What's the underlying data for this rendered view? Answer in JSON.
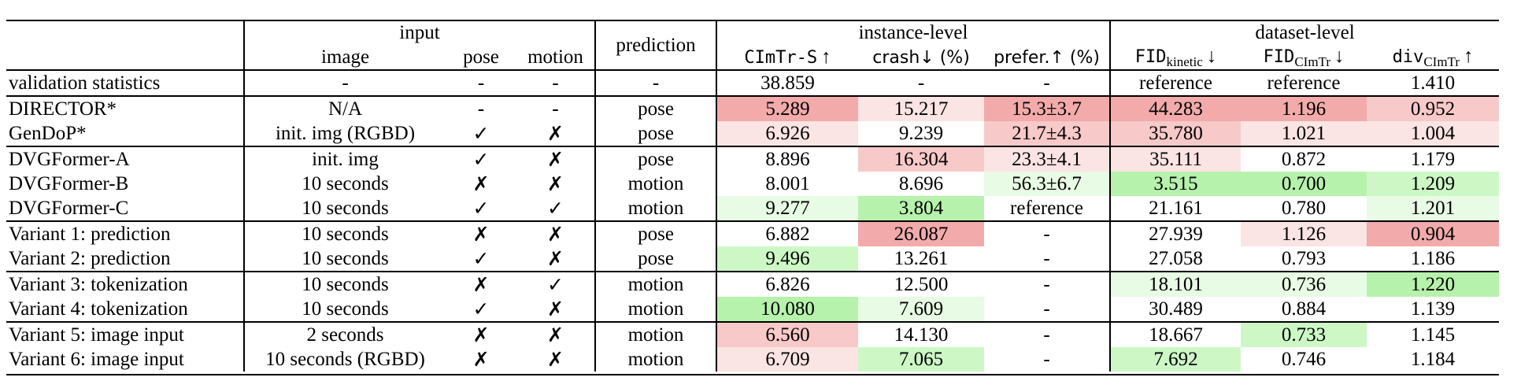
{
  "header": {
    "group_input": "input",
    "group_instance": "instance-level",
    "group_dataset": "dataset-level",
    "col_image": "image",
    "col_pose": "pose",
    "col_motion": "motion",
    "col_prediction": "prediction",
    "col_cimtr_s": "CImTr-S",
    "col_cimtr_s_arrow": "↑",
    "col_crash": "crash↓ (%)",
    "col_prefer": "prefer.↑ (%)",
    "col_fid_kinetic_base": "FID",
    "col_fid_kinetic_sub": "kinetic",
    "col_fid_kinetic_arrow": "↓",
    "col_fid_cimtr_base": "FID",
    "col_fid_cimtr_sub": "CImTr",
    "col_fid_cimtr_arrow": "↓",
    "col_div_base": "div",
    "col_div_sub": "CImTr",
    "col_div_arrow": "↑"
  },
  "validation": {
    "label": "validation statistics",
    "image": "-",
    "pose": "-",
    "motion": "-",
    "prediction": "-",
    "cimtr_s": "38.859",
    "crash": "-",
    "prefer": "-",
    "fid_kinetic": "reference",
    "fid_cimtr": "reference",
    "div": "1.410"
  },
  "rows": [
    {
      "label": "DIRECTOR*",
      "image": "N/A",
      "pose": "-",
      "motion": "-",
      "prediction": "pose",
      "cimtr_s": "5.289",
      "crash": "15.217",
      "prefer": "15.3±3.7",
      "fid_kinetic": "44.283",
      "fid_cimtr": "1.196",
      "div": "0.952"
    },
    {
      "label": "GenDoP*",
      "image": "init. img (RGBD)",
      "pose": "✓",
      "motion": "✗",
      "prediction": "pose",
      "cimtr_s": "6.926",
      "crash": "9.239",
      "prefer": "21.7±4.3",
      "fid_kinetic": "35.780",
      "fid_cimtr": "1.021",
      "div": "1.004"
    },
    {
      "label": "DVGFormer-A",
      "image": "init. img",
      "pose": "✓",
      "motion": "✗",
      "prediction": "pose",
      "cimtr_s": "8.896",
      "crash": "16.304",
      "prefer": "23.3±4.1",
      "fid_kinetic": "35.111",
      "fid_cimtr": "0.872",
      "div": "1.179"
    },
    {
      "label": "DVGFormer-B",
      "image": "10 seconds",
      "pose": "✗",
      "motion": "✗",
      "prediction": "motion",
      "cimtr_s": "8.001",
      "crash": "8.696",
      "prefer": "56.3±6.7",
      "fid_kinetic": "3.515",
      "fid_cimtr": "0.700",
      "div": "1.209"
    },
    {
      "label": "DVGFormer-C",
      "image": "10 seconds",
      "pose": "✓",
      "motion": "✓",
      "prediction": "motion",
      "cimtr_s": "9.277",
      "crash": "3.804",
      "prefer": "reference",
      "fid_kinetic": "21.161",
      "fid_cimtr": "0.780",
      "div": "1.201"
    },
    {
      "label": "Variant 1: prediction",
      "image": "10 seconds",
      "pose": "✗",
      "motion": "✗",
      "prediction": "pose",
      "cimtr_s": "6.882",
      "crash": "26.087",
      "prefer": "-",
      "fid_kinetic": "27.939",
      "fid_cimtr": "1.126",
      "div": "0.904"
    },
    {
      "label": "Variant 2: prediction",
      "image": "10 seconds",
      "pose": "✓",
      "motion": "✗",
      "prediction": "pose",
      "cimtr_s": "9.496",
      "crash": "13.261",
      "prefer": "-",
      "fid_kinetic": "27.058",
      "fid_cimtr": "0.793",
      "div": "1.186"
    },
    {
      "label": "Variant 3: tokenization",
      "image": "10 seconds",
      "pose": "✗",
      "motion": "✓",
      "prediction": "motion",
      "cimtr_s": "6.826",
      "crash": "12.500",
      "prefer": "-",
      "fid_kinetic": "18.101",
      "fid_cimtr": "0.736",
      "div": "1.220"
    },
    {
      "label": "Variant 4: tokenization",
      "image": "10 seconds",
      "pose": "✓",
      "motion": "✗",
      "prediction": "motion",
      "cimtr_s": "10.080",
      "crash": "7.609",
      "prefer": "-",
      "fid_kinetic": "30.489",
      "fid_cimtr": "0.884",
      "div": "1.139"
    },
    {
      "label": "Variant 5: image input",
      "image": "2 seconds",
      "pose": "✗",
      "motion": "✗",
      "prediction": "motion",
      "cimtr_s": "6.560",
      "crash": "14.130",
      "prefer": "-",
      "fid_kinetic": "18.667",
      "fid_cimtr": "0.733",
      "div": "1.145"
    },
    {
      "label": "Variant 6: image input",
      "image": "10 seconds (RGBD)",
      "pose": "✗",
      "motion": "✗",
      "prediction": "motion",
      "cimtr_s": "6.709",
      "crash": "7.065",
      "prefer": "-",
      "fid_kinetic": "7.692",
      "fid_cimtr": "0.746",
      "div": "1.184"
    }
  ],
  "highlight_colors": {
    "red_strong": "#f2aaaa",
    "red_mid": "#f7c9c9",
    "red_light": "#fbe4e4",
    "green_strong": "#b6f2ab",
    "green_mid": "#cdf8c6",
    "green_light": "#e8fbe4"
  },
  "highlights": {
    "0": {
      "cimtr_s": "red_strong",
      "crash": "red_light",
      "prefer": "red_strong",
      "fid_kinetic": "red_strong",
      "fid_cimtr": "red_strong",
      "div": "red_mid"
    },
    "1": {
      "cimtr_s": "red_light",
      "prefer": "red_mid",
      "fid_kinetic": "red_mid",
      "fid_cimtr": "red_light",
      "div": "red_light"
    },
    "2": {
      "crash": "red_mid",
      "prefer": "red_light",
      "fid_kinetic": "red_light"
    },
    "3": {
      "prefer": "green_light",
      "fid_kinetic": "green_strong",
      "fid_cimtr": "green_strong",
      "div": "green_mid"
    },
    "4": {
      "cimtr_s": "green_light",
      "crash": "green_strong",
      "div": "green_light"
    },
    "5": {
      "crash": "red_strong",
      "fid_cimtr": "red_light",
      "div": "red_strong"
    },
    "6": {
      "cimtr_s": "green_mid"
    },
    "7": {
      "fid_kinetic": "green_light",
      "fid_cimtr": "green_light",
      "div": "green_strong"
    },
    "8": {
      "cimtr_s": "green_strong",
      "crash": "green_light"
    },
    "9": {
      "cimtr_s": "red_mid",
      "fid_cimtr": "green_mid"
    },
    "10": {
      "cimtr_s": "red_light",
      "crash": "green_mid",
      "fid_kinetic": "green_mid"
    }
  },
  "group_starts": [
    0,
    2,
    5,
    7,
    9
  ]
}
